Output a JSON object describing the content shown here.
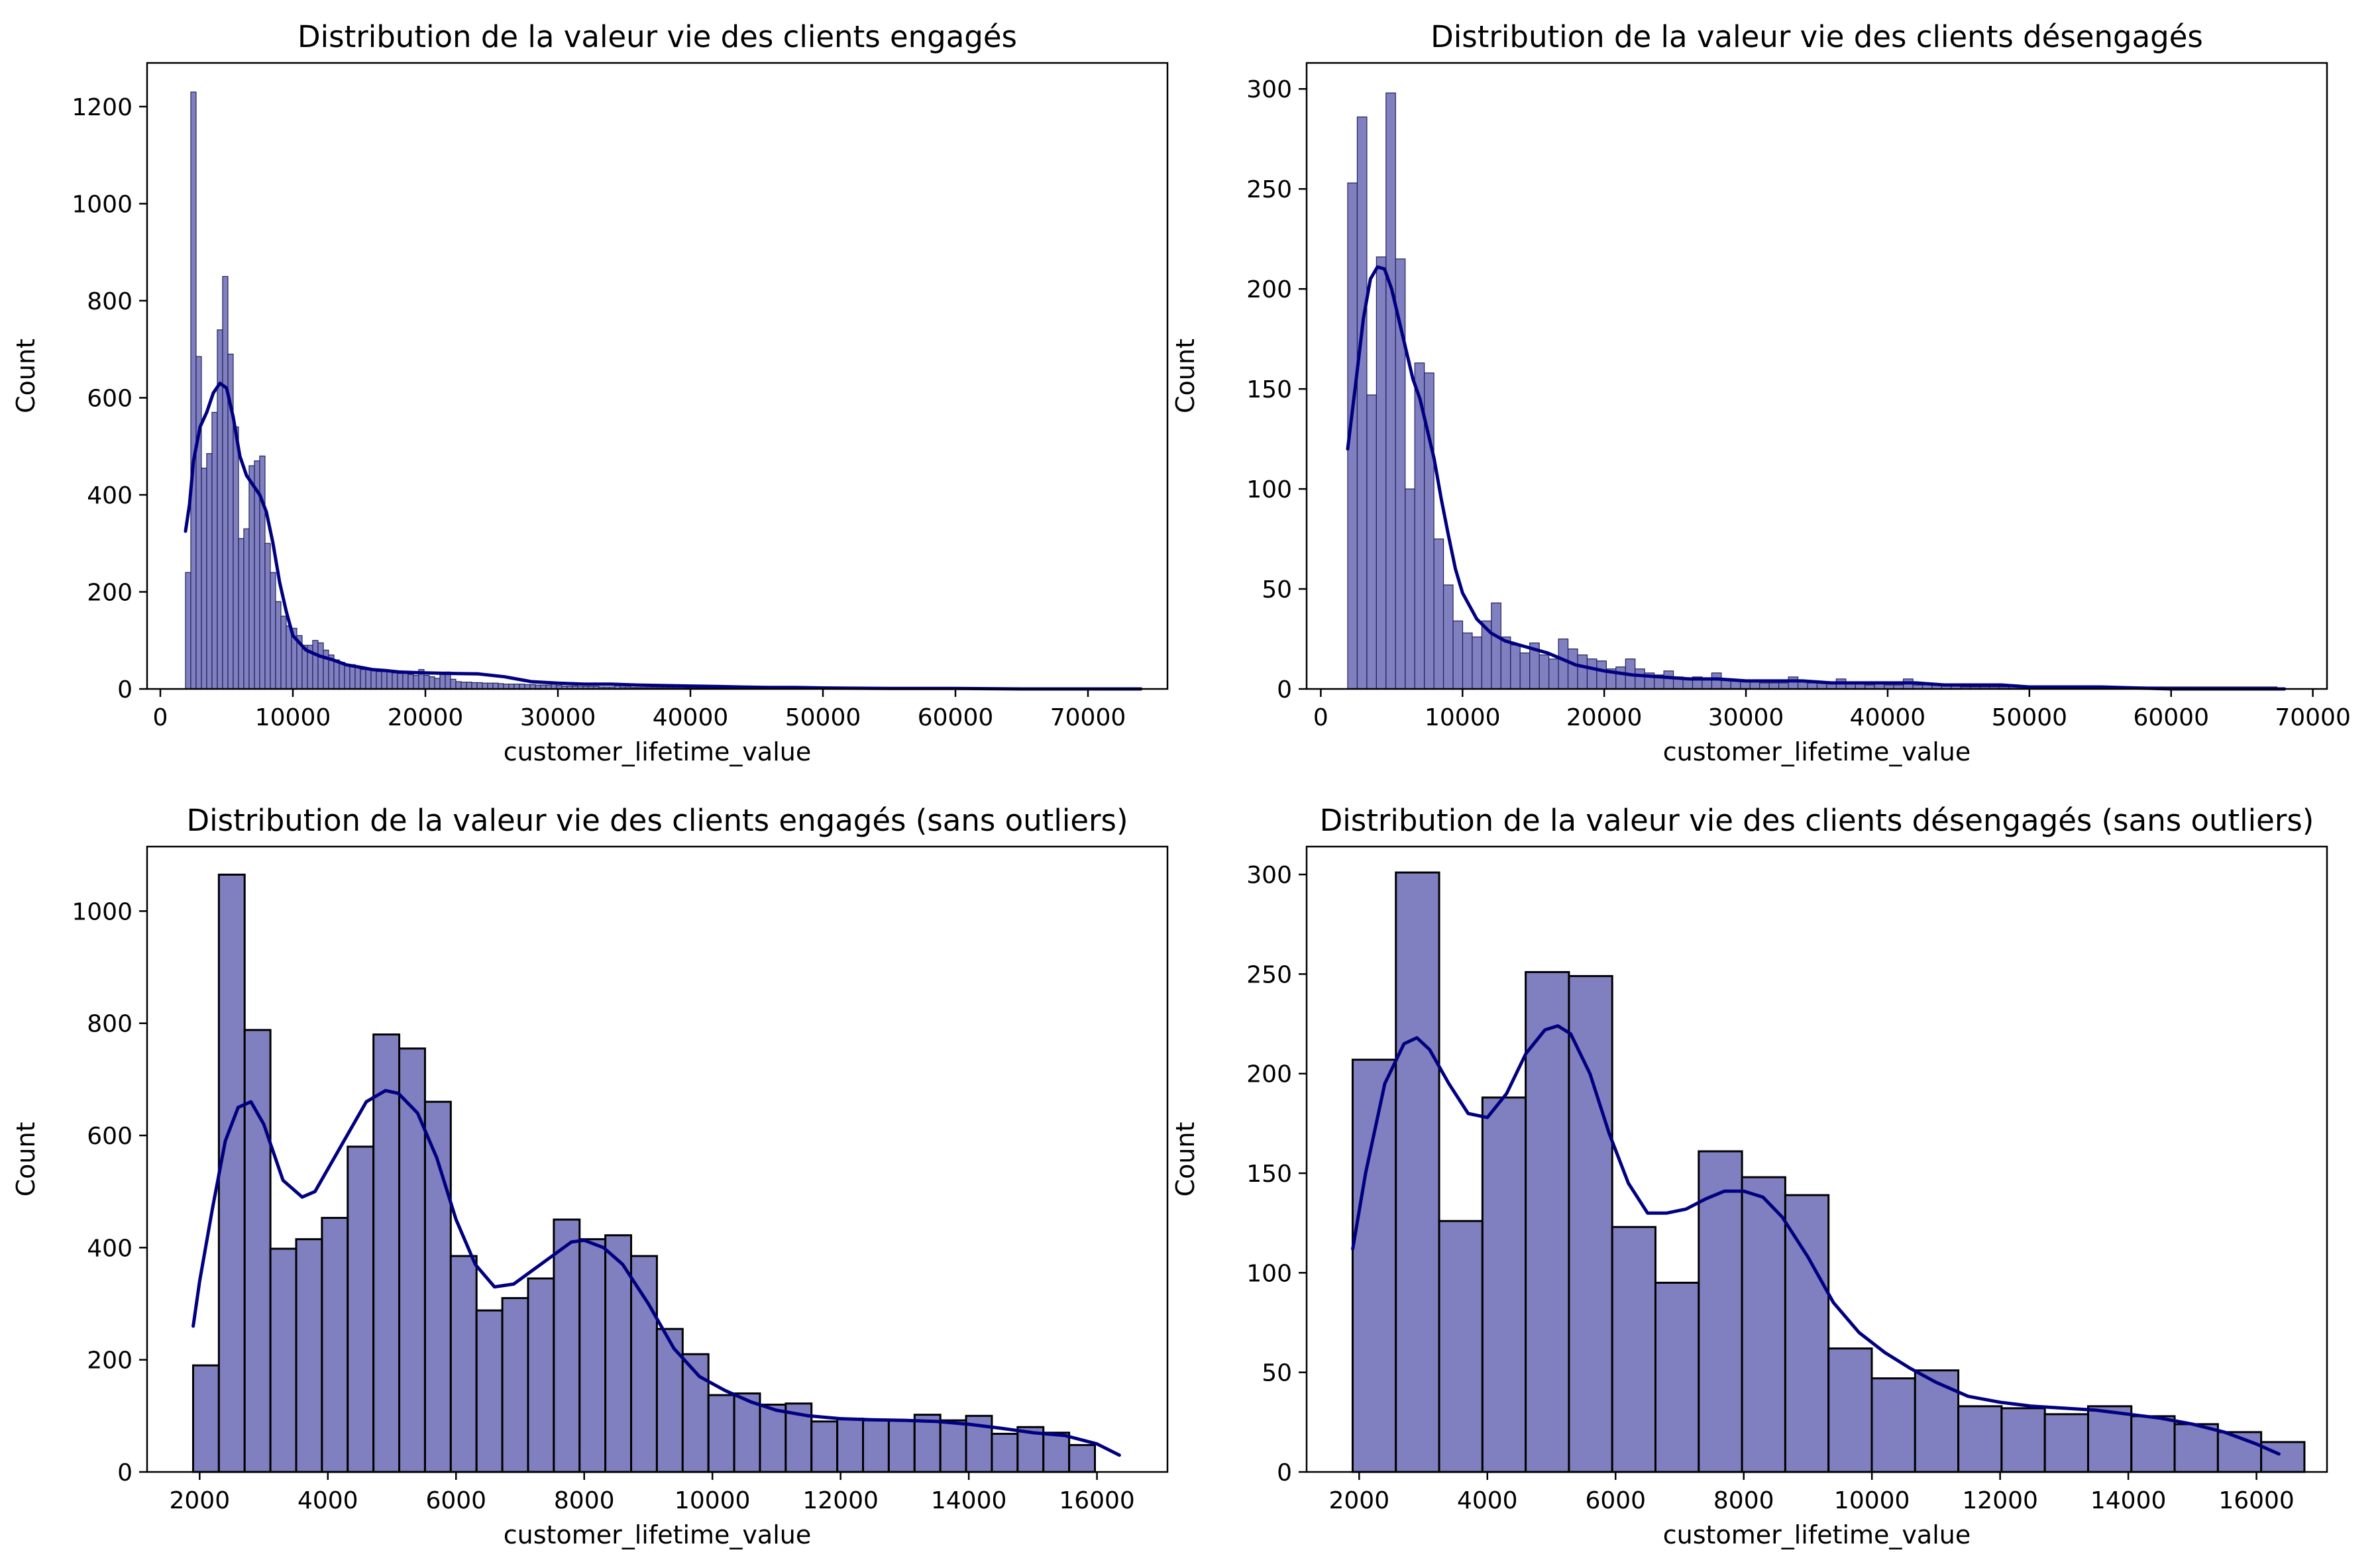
{
  "chart_data": [
    {
      "type": "histogram",
      "title": "Distribution de la valeur vie des clients engagés",
      "xlabel": "customer_lifetime_value",
      "ylabel": "Count",
      "xlim": [
        -1000,
        76000
      ],
      "ylim": [
        0,
        1290
      ],
      "xticks": [
        0,
        10000,
        20000,
        30000,
        40000,
        50000,
        60000,
        70000
      ],
      "yticks": [
        0,
        200,
        400,
        600,
        800,
        1000,
        1200
      ],
      "bin_start": 1898,
      "bin_width": 400,
      "counts": [
        240,
        1230,
        685,
        455,
        485,
        570,
        740,
        850,
        690,
        540,
        310,
        330,
        460,
        470,
        480,
        300,
        240,
        180,
        150,
        130,
        125,
        110,
        90,
        90,
        100,
        95,
        80,
        70,
        60,
        55,
        50,
        50,
        45,
        40,
        42,
        38,
        36,
        36,
        35,
        33,
        32,
        32,
        30,
        28,
        40,
        28,
        25,
        22,
        30,
        35,
        20,
        15,
        14,
        14,
        13,
        13,
        12,
        12,
        12,
        11,
        10,
        10,
        10,
        10,
        9,
        9,
        8,
        8,
        8,
        12,
        7,
        6,
        6,
        6,
        5,
        5,
        5,
        5,
        4,
        4,
        4,
        8,
        4,
        4,
        3,
        3,
        3,
        3,
        3,
        3,
        3,
        3,
        3,
        3,
        2,
        2,
        2,
        2,
        2,
        2,
        2,
        2,
        2,
        2,
        2,
        2,
        2,
        2,
        2,
        2,
        2,
        2,
        2,
        2,
        2,
        2,
        2,
        2,
        2,
        2,
        2,
        2,
        2,
        2,
        1,
        1,
        1,
        1,
        1,
        1,
        1,
        1,
        1,
        1,
        1,
        1,
        1,
        1,
        1,
        1,
        1,
        1,
        1,
        1,
        1,
        1,
        1,
        1,
        1,
        1,
        1,
        1,
        1,
        1,
        1,
        1,
        1,
        1,
        1,
        1,
        1,
        1,
        1,
        1,
        1,
        1,
        1,
        1,
        1,
        1,
        1,
        1,
        1
      ],
      "kde": {
        "x": [
          1900,
          2200,
          2500,
          3000,
          3500,
          4000,
          4500,
          5000,
          5500,
          6000,
          6500,
          7000,
          7500,
          8000,
          8500,
          9000,
          9500,
          10000,
          11000,
          12000,
          13000,
          14000,
          15000,
          16000,
          17000,
          18000,
          20000,
          22000,
          24000,
          26000,
          28000,
          30000,
          32000,
          34000,
          36000,
          38000,
          40000,
          42000,
          44000,
          46000,
          48000,
          50000,
          55000,
          60000,
          65000,
          70000,
          74000
        ],
        "y": [
          325,
          380,
          470,
          540,
          570,
          610,
          630,
          620,
          560,
          480,
          440,
          420,
          400,
          365,
          300,
          220,
          160,
          110,
          80,
          68,
          60,
          50,
          45,
          40,
          38,
          35,
          33,
          32,
          31,
          25,
          15,
          12,
          10,
          10,
          8,
          7,
          6,
          5,
          4,
          3,
          3,
          2,
          1,
          1,
          0,
          0,
          0
        ]
      },
      "colors": {
        "bar_fill": "#8080C0",
        "bar_edge": "#20205A",
        "kde_line": "#000080"
      }
    },
    {
      "type": "histogram",
      "title": "Distribution de la valeur vie des clients désengagés",
      "xlabel": "customer_lifetime_value",
      "ylabel": "Count",
      "xlim": [
        -1000,
        71000
      ],
      "ylim": [
        0,
        313
      ],
      "xticks": [
        0,
        10000,
        20000,
        30000,
        40000,
        50000,
        60000,
        70000
      ],
      "yticks": [
        0,
        50,
        100,
        150,
        200,
        250,
        300
      ],
      "bin_start": 1898,
      "bin_width": 676,
      "counts": [
        253,
        286,
        147,
        216,
        298,
        215,
        100,
        163,
        158,
        75,
        52,
        34,
        28,
        26,
        34,
        43,
        26,
        22,
        18,
        23,
        17,
        15,
        25,
        20,
        17,
        15,
        14,
        10,
        11,
        15,
        10,
        8,
        7,
        9,
        6,
        5,
        6,
        5,
        8,
        5,
        4,
        4,
        4,
        3,
        3,
        3,
        6,
        4,
        3,
        3,
        3,
        5,
        3,
        3,
        2,
        3,
        2,
        2,
        5,
        2,
        2,
        2,
        2,
        2,
        1,
        1,
        1,
        1,
        1,
        1,
        1,
        1,
        1,
        1,
        1,
        1,
        1,
        1,
        1,
        1,
        1,
        1,
        1,
        1,
        1,
        1,
        1,
        1,
        1,
        1,
        1,
        1,
        1,
        1,
        1,
        1,
        1
      ],
      "kde": {
        "x": [
          1900,
          2500,
          3000,
          3500,
          4000,
          4500,
          5000,
          5500,
          6000,
          6500,
          7000,
          7500,
          8000,
          8500,
          9000,
          9500,
          10000,
          11000,
          12000,
          13000,
          14000,
          15000,
          16000,
          17000,
          18000,
          20000,
          22000,
          24000,
          26000,
          28000,
          30000,
          32000,
          34000,
          36000,
          38000,
          40000,
          42000,
          44000,
          46000,
          48000,
          50000,
          55000,
          60000,
          65000,
          68000
        ],
        "y": [
          120,
          155,
          185,
          205,
          211,
          210,
          200,
          185,
          170,
          155,
          145,
          130,
          115,
          95,
          77,
          60,
          48,
          35,
          28,
          24,
          22,
          20,
          18,
          15,
          12,
          9,
          7,
          6,
          5,
          5,
          4,
          4,
          4,
          3,
          3,
          3,
          3,
          2,
          2,
          2,
          1,
          1,
          0,
          0,
          0
        ]
      },
      "colors": {
        "bar_fill": "#8080C0",
        "bar_edge": "#20205A",
        "kde_line": "#000080"
      }
    },
    {
      "type": "histogram",
      "title": "Distribution de la valeur vie des clients engagés (sans outliers)",
      "xlabel": "customer_lifetime_value",
      "ylabel": "Count",
      "xlim": [
        1180,
        17100
      ],
      "ylim": [
        0,
        1115
      ],
      "xticks": [
        2000,
        4000,
        6000,
        8000,
        10000,
        12000,
        14000,
        16000
      ],
      "yticks": [
        0,
        200,
        400,
        600,
        800,
        1000
      ],
      "bin_start": 1898,
      "bin_width": 402,
      "counts": [
        190,
        1065,
        788,
        398,
        415,
        453,
        580,
        780,
        755,
        660,
        385,
        288,
        310,
        345,
        450,
        415,
        422,
        385,
        255,
        210,
        137,
        140,
        120,
        122,
        90,
        95,
        92,
        92,
        102,
        92,
        100,
        68,
        80,
        70,
        48
      ],
      "kde": {
        "x": [
          1900,
          2000,
          2200,
          2400,
          2600,
          2800,
          3000,
          3300,
          3600,
          3800,
          4000,
          4300,
          4600,
          4900,
          5100,
          5400,
          5700,
          6000,
          6300,
          6600,
          6900,
          7200,
          7500,
          7800,
          8000,
          8300,
          8600,
          9000,
          9400,
          9800,
          10200,
          10600,
          11000,
          11500,
          12000,
          12500,
          13000,
          13500,
          14000,
          14500,
          15000,
          15500,
          16000,
          16350
        ],
        "y": [
          260,
          340,
          470,
          590,
          650,
          660,
          620,
          520,
          490,
          500,
          540,
          600,
          660,
          680,
          675,
          640,
          560,
          450,
          370,
          330,
          335,
          360,
          385,
          410,
          413,
          400,
          370,
          300,
          220,
          170,
          145,
          125,
          110,
          100,
          95,
          93,
          92,
          90,
          85,
          78,
          70,
          65,
          50,
          30
        ]
      },
      "colors": {
        "bar_fill": "#8080C0",
        "bar_edge": "#000000",
        "kde_line": "#000080"
      }
    },
    {
      "type": "histogram",
      "title": "Distribution de la valeur vie des clients désengagés (sans outliers)",
      "xlabel": "customer_lifetime_value",
      "ylabel": "Count",
      "xlim": [
        1180,
        17100
      ],
      "ylim": [
        0,
        314
      ],
      "xticks": [
        2000,
        4000,
        6000,
        8000,
        10000,
        12000,
        14000,
        16000
      ],
      "yticks": [
        0,
        50,
        100,
        150,
        200,
        250,
        300
      ],
      "bin_start": 1898,
      "bin_width": 675,
      "counts": [
        207,
        301,
        126,
        188,
        251,
        249,
        123,
        95,
        161,
        148,
        139,
        62,
        47,
        51,
        33,
        32,
        29,
        33,
        28,
        24,
        20,
        15
      ],
      "kde": {
        "x": [
          1900,
          2100,
          2400,
          2700,
          2900,
          3100,
          3400,
          3700,
          4000,
          4300,
          4600,
          4900,
          5100,
          5300,
          5600,
          5900,
          6200,
          6500,
          6800,
          7100,
          7400,
          7700,
          8000,
          8300,
          8600,
          9000,
          9400,
          9800,
          10200,
          10600,
          11000,
          11500,
          12000,
          12500,
          13000,
          13500,
          14000,
          14500,
          15000,
          15500,
          16000,
          16350
        ],
        "y": [
          112,
          150,
          195,
          215,
          218,
          212,
          195,
          180,
          178,
          190,
          210,
          222,
          224,
          220,
          200,
          170,
          145,
          130,
          130,
          132,
          137,
          141,
          141,
          138,
          128,
          108,
          85,
          70,
          60,
          52,
          45,
          38,
          35,
          33,
          32,
          31,
          29,
          27,
          24,
          20,
          14,
          9
        ]
      },
      "colors": {
        "bar_fill": "#8080C0",
        "bar_edge": "#000000",
        "kde_line": "#000080"
      }
    }
  ]
}
